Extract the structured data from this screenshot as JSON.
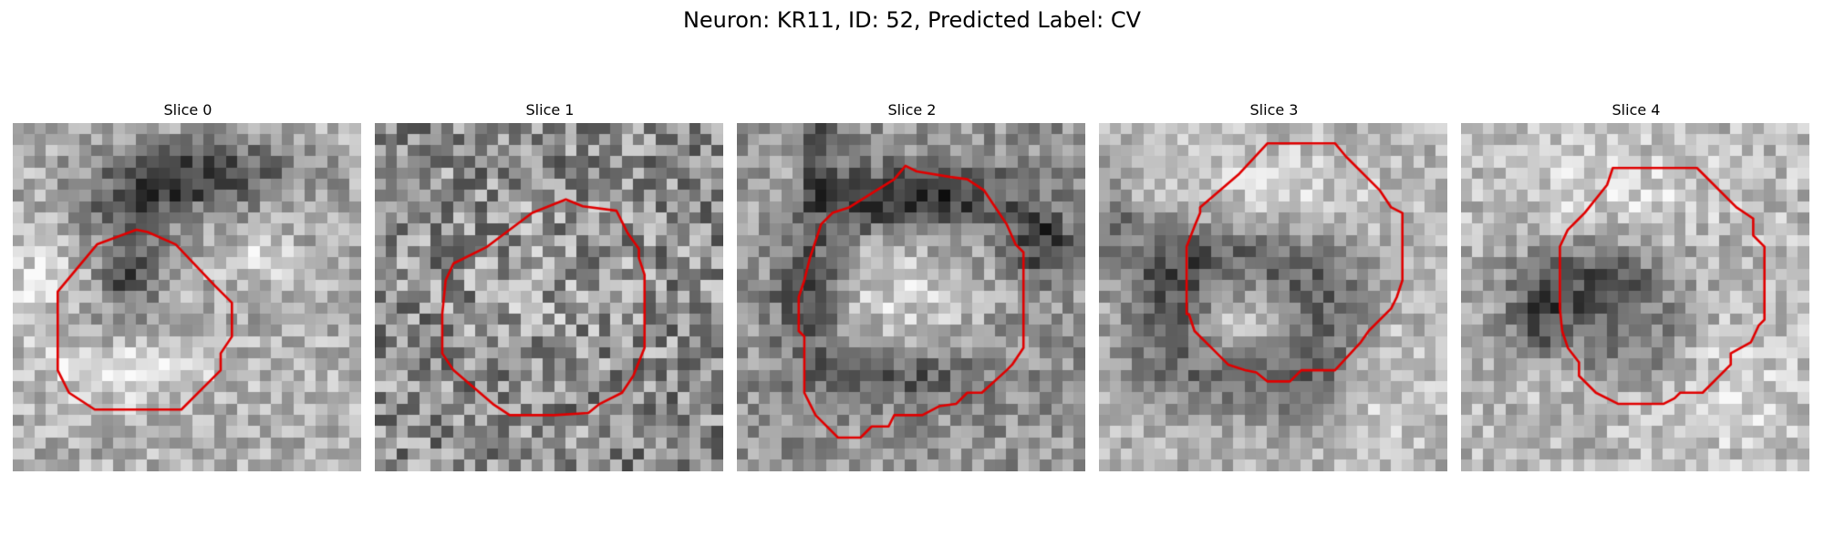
{
  "figure": {
    "title": "Neuron: KR11, ID: 52, Predicted Label: CV"
  },
  "panels": [
    {
      "title": "Slice 0",
      "seed": 11,
      "pattern": "slice0"
    },
    {
      "title": "Slice 1",
      "seed": 23,
      "pattern": "slice1"
    },
    {
      "title": "Slice 2",
      "seed": 37,
      "pattern": "slice2"
    },
    {
      "title": "Slice 3",
      "seed": 41,
      "pattern": "slice3"
    },
    {
      "title": "Slice 4",
      "seed": 53,
      "pattern": "slice4"
    }
  ],
  "colors": {
    "contour": "#e00000",
    "background": "#ffffff"
  }
}
